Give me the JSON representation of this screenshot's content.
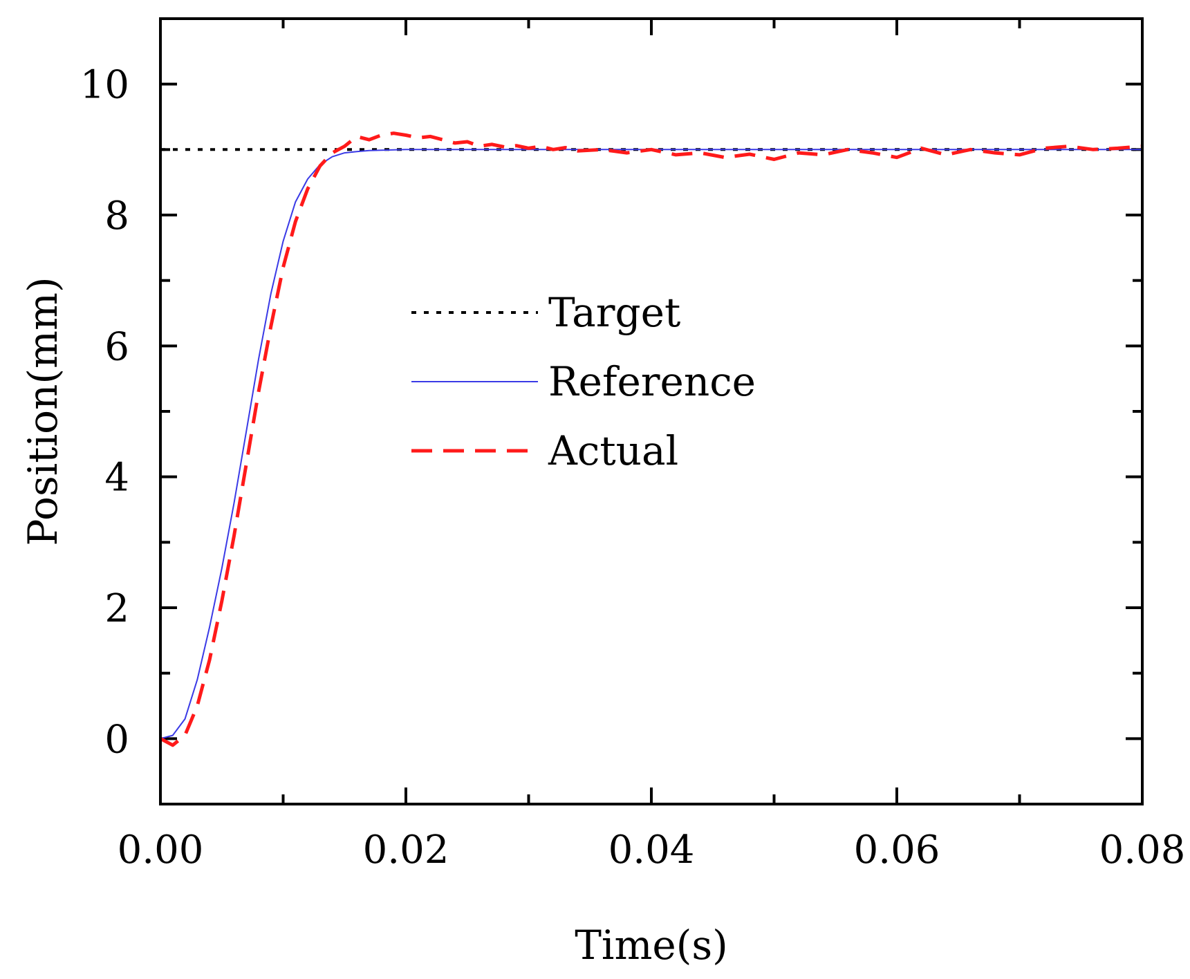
{
  "chart_data": {
    "type": "line",
    "title": "",
    "xlabel": "Time(s)",
    "ylabel": "Position(mm)",
    "xlim": [
      0,
      0.08
    ],
    "ylim": [
      -1,
      11
    ],
    "x_ticks": [
      0,
      0.02,
      0.04,
      0.06,
      0.08
    ],
    "x_tick_labels": [
      "0.00",
      "0.02",
      "0.04",
      "0.06",
      "0.08"
    ],
    "x_minor_ticks": [
      0.01,
      0.03,
      0.05,
      0.07
    ],
    "y_ticks": [
      0,
      2,
      4,
      6,
      8,
      10
    ],
    "y_tick_labels": [
      "0",
      "2",
      "4",
      "6",
      "8",
      "10"
    ],
    "y_minor_ticks": [
      1,
      3,
      5,
      7,
      9
    ],
    "grid": false,
    "legend_position": "center",
    "series": [
      {
        "name": "Target",
        "color": "#000000",
        "style": "dotted",
        "x": [
          0,
          0.08
        ],
        "y": [
          9,
          9
        ]
      },
      {
        "name": "Reference",
        "color": "#3a3ae6",
        "style": "solid",
        "x": [
          0,
          0.001,
          0.002,
          0.003,
          0.004,
          0.005,
          0.006,
          0.007,
          0.008,
          0.009,
          0.01,
          0.011,
          0.012,
          0.013,
          0.014,
          0.015,
          0.016,
          0.017,
          0.018,
          0.019,
          0.02,
          0.025,
          0.03,
          0.04,
          0.05,
          0.06,
          0.07,
          0.08
        ],
        "y": [
          0,
          0.05,
          0.3,
          0.9,
          1.7,
          2.6,
          3.6,
          4.7,
          5.8,
          6.8,
          7.6,
          8.2,
          8.55,
          8.77,
          8.89,
          8.95,
          8.97,
          8.985,
          8.99,
          8.995,
          9.0,
          9.0,
          9.0,
          9.0,
          9.0,
          9.0,
          9.0,
          9.0
        ]
      },
      {
        "name": "Actual",
        "color": "#ff1a1a",
        "style": "dashed",
        "x": [
          0,
          0.001,
          0.002,
          0.003,
          0.004,
          0.005,
          0.006,
          0.007,
          0.008,
          0.009,
          0.01,
          0.011,
          0.012,
          0.013,
          0.014,
          0.015,
          0.016,
          0.017,
          0.018,
          0.019,
          0.02,
          0.021,
          0.022,
          0.023,
          0.024,
          0.025,
          0.026,
          0.027,
          0.028,
          0.029,
          0.03,
          0.031,
          0.032,
          0.033,
          0.034,
          0.036,
          0.038,
          0.04,
          0.042,
          0.044,
          0.046,
          0.048,
          0.05,
          0.052,
          0.054,
          0.056,
          0.058,
          0.06,
          0.062,
          0.064,
          0.066,
          0.068,
          0.07,
          0.072,
          0.074,
          0.076,
          0.078,
          0.08
        ],
        "y": [
          0,
          -0.1,
          0.05,
          0.5,
          1.2,
          2.1,
          3.1,
          4.2,
          5.3,
          6.3,
          7.2,
          7.9,
          8.4,
          8.75,
          8.95,
          9.05,
          9.2,
          9.15,
          9.22,
          9.25,
          9.22,
          9.18,
          9.2,
          9.15,
          9.1,
          9.12,
          9.05,
          9.08,
          9.04,
          9.06,
          9.02,
          9.05,
          9.0,
          9.03,
          8.98,
          9.0,
          8.95,
          9.0,
          8.92,
          8.95,
          8.88,
          8.93,
          8.85,
          8.95,
          8.92,
          9.0,
          8.95,
          8.88,
          9.02,
          8.92,
          9.0,
          8.95,
          8.92,
          9.02,
          9.05,
          9.0,
          9.02,
          9.05
        ]
      }
    ]
  }
}
